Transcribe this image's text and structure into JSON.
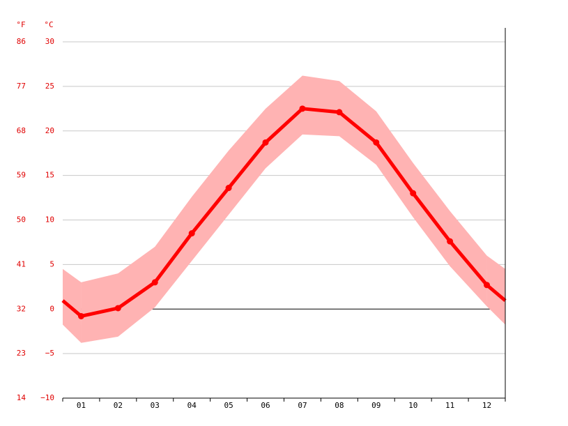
{
  "chart_data": {
    "type": "line",
    "y_unit_label": "°C",
    "y2_unit_label": "°F",
    "categories": [
      "01",
      "02",
      "03",
      "04",
      "05",
      "06",
      "07",
      "08",
      "09",
      "10",
      "11",
      "12"
    ],
    "series": [
      {
        "color": "#ffb3b3",
        "values": [
          3.0,
          4.0,
          7.0,
          12.6,
          17.8,
          22.5,
          26.2,
          25.6,
          22.2,
          16.4,
          11.0,
          6.0
        ]
      },
      {
        "color": "#ffb3b3",
        "values": [
          -3.8,
          -3.1,
          0.2,
          5.4,
          10.6,
          15.8,
          19.6,
          19.4,
          16.2,
          10.3,
          4.8,
          0.3
        ]
      },
      {
        "color": "#ff0000",
        "values": [
          -0.8,
          0.1,
          3.0,
          8.5,
          13.6,
          18.7,
          22.5,
          22.1,
          18.7,
          13.0,
          7.6,
          2.7
        ]
      }
    ],
    "ylim": [
      -10,
      30
    ],
    "yticks": [
      {
        "value": -10,
        "label": "−10"
      },
      {
        "value": -5,
        "label": "−5"
      },
      0,
      5,
      10,
      15,
      20,
      25,
      30
    ],
    "y2lim": [
      14,
      86
    ],
    "y2ticks": [
      14,
      23,
      32,
      41,
      50,
      59,
      68,
      77,
      86
    ],
    "grid": true
  }
}
